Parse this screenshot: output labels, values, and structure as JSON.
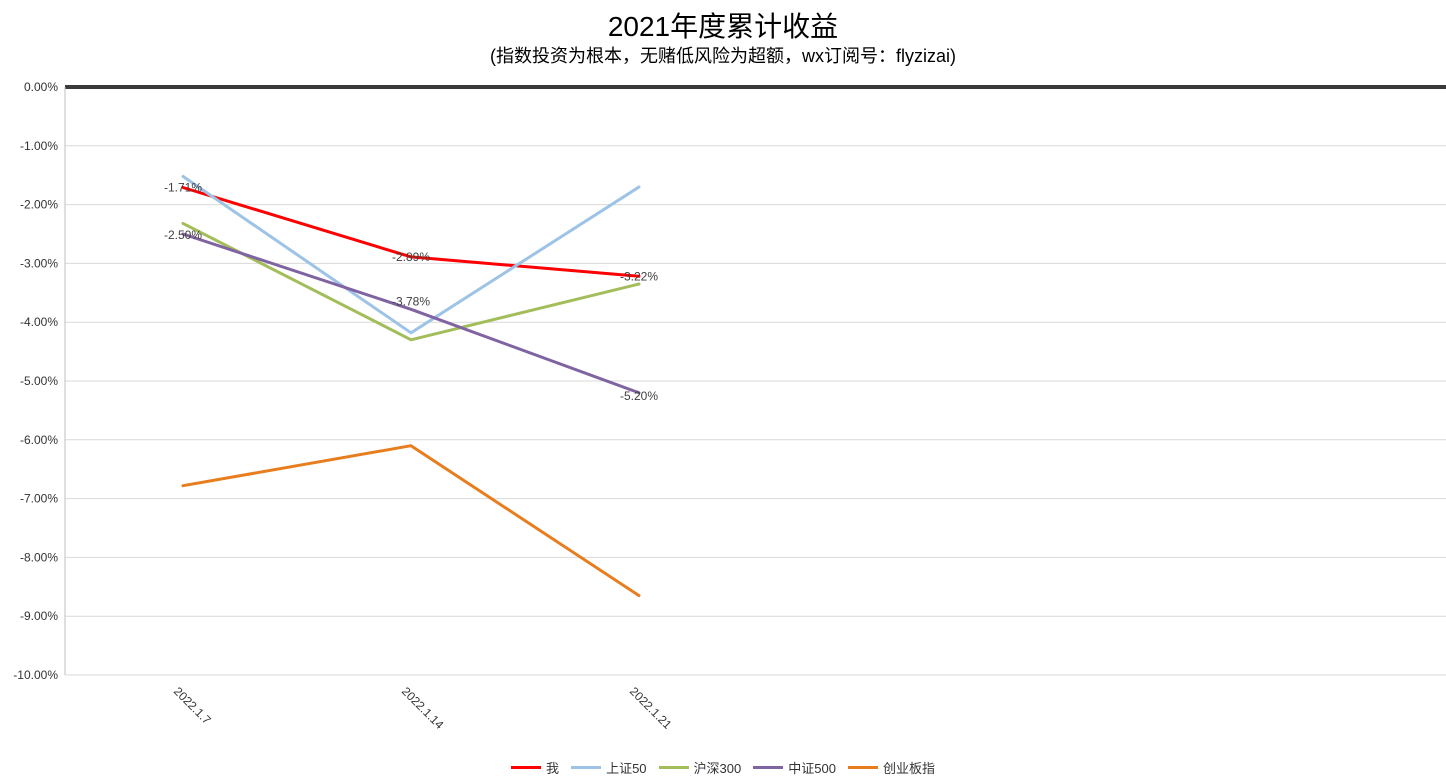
{
  "chart_data": {
    "type": "line",
    "title": "2021年度累计收益",
    "subtitle": "(指数投资为根本，无赌低风险为超额，wx订阅号：flyzizai)",
    "categories": [
      "2022.1.7",
      "2022.1.14",
      "2022.1.21"
    ],
    "ylim": [
      -10,
      0
    ],
    "y_ticks": [
      "0.00%",
      "-1.00%",
      "-2.00%",
      "-3.00%",
      "-4.00%",
      "-5.00%",
      "-6.00%",
      "-7.00%",
      "-8.00%",
      "-9.00%",
      "-10.00%"
    ],
    "grid": true,
    "legend_position": "bottom",
    "series": [
      {
        "name": "我",
        "color": "#ff0000",
        "values": [
          -1.71,
          -2.89,
          -3.22
        ],
        "labels": [
          "-1.71%",
          "-2.89%",
          "-3.22%"
        ]
      },
      {
        "name": "上证50",
        "color": "#9dc3e6",
        "values": [
          -1.52,
          -4.18,
          -1.7
        ]
      },
      {
        "name": "沪深300",
        "color": "#a3bd5a",
        "values": [
          -2.32,
          -4.3,
          -3.35
        ]
      },
      {
        "name": "中证500",
        "color": "#8064a2",
        "values": [
          -2.5,
          -3.78,
          -5.2
        ],
        "labels": [
          "-2.50%",
          "-3.78%",
          "-5.20%"
        ]
      },
      {
        "name": "创业板指",
        "color": "#e87d1e",
        "values": [
          -6.78,
          -6.1,
          -8.65
        ]
      }
    ]
  }
}
